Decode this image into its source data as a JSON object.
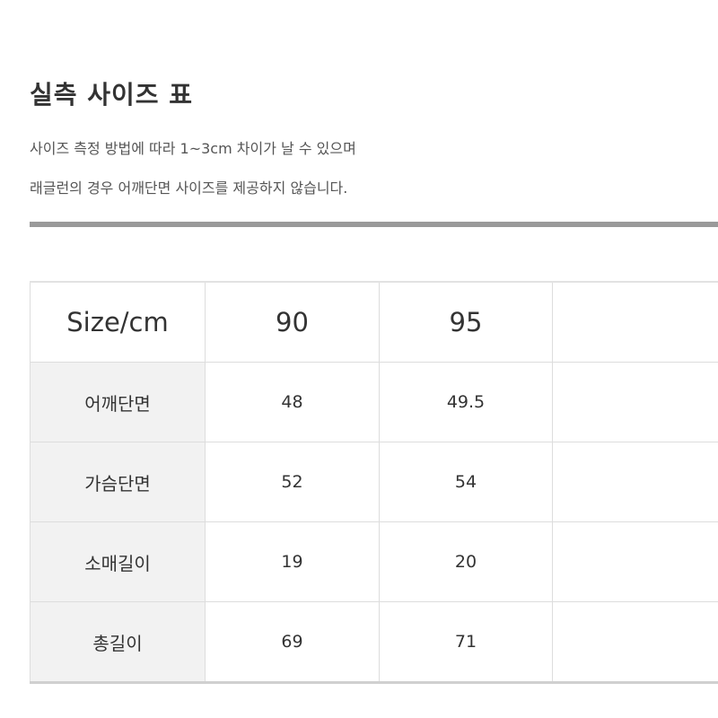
{
  "title": "실측 사이즈 표",
  "description": [
    "사이즈 측정 방법에 따라 1~3cm 차이가 날 수 있으며",
    "래글런의 경우 어깨단면 사이즈를 제공하지 않습니다."
  ],
  "table": {
    "header": [
      "Size/cm",
      "90",
      "95",
      ""
    ],
    "rows": [
      {
        "label": "어깨단면",
        "values": [
          "48",
          "49.5",
          ""
        ]
      },
      {
        "label": "가슴단면",
        "values": [
          "52",
          "54",
          ""
        ]
      },
      {
        "label": "소매길이",
        "values": [
          "19",
          "20",
          ""
        ]
      },
      {
        "label": "총길이",
        "values": [
          "69",
          "71",
          ""
        ]
      }
    ]
  }
}
